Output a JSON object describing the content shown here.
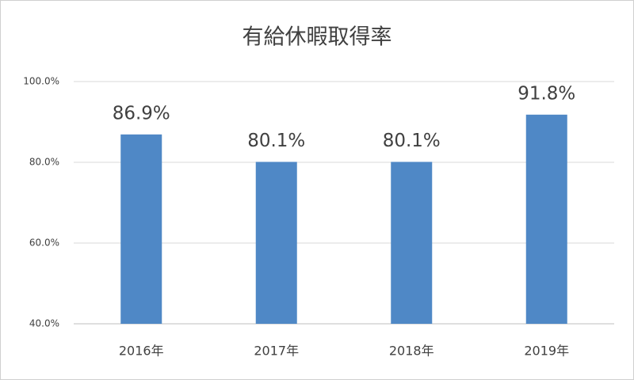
{
  "chart_data": {
    "type": "bar",
    "title": "有給休暇取得率",
    "categories": [
      "2016年",
      "2017年",
      "2018年",
      "2019年"
    ],
    "values": [
      86.9,
      80.1,
      80.1,
      91.8
    ],
    "value_labels": [
      "86.9%",
      "80.1%",
      "80.1%",
      "91.8%"
    ],
    "color": "#4f88c6",
    "ylim": [
      40,
      100
    ],
    "yticks": [
      {
        "value": 40,
        "label": "40.0%"
      },
      {
        "value": 60,
        "label": "60.0%"
      },
      {
        "value": 80,
        "label": "80.0%"
      },
      {
        "value": 100,
        "label": "100.0%"
      }
    ],
    "grid": true
  }
}
